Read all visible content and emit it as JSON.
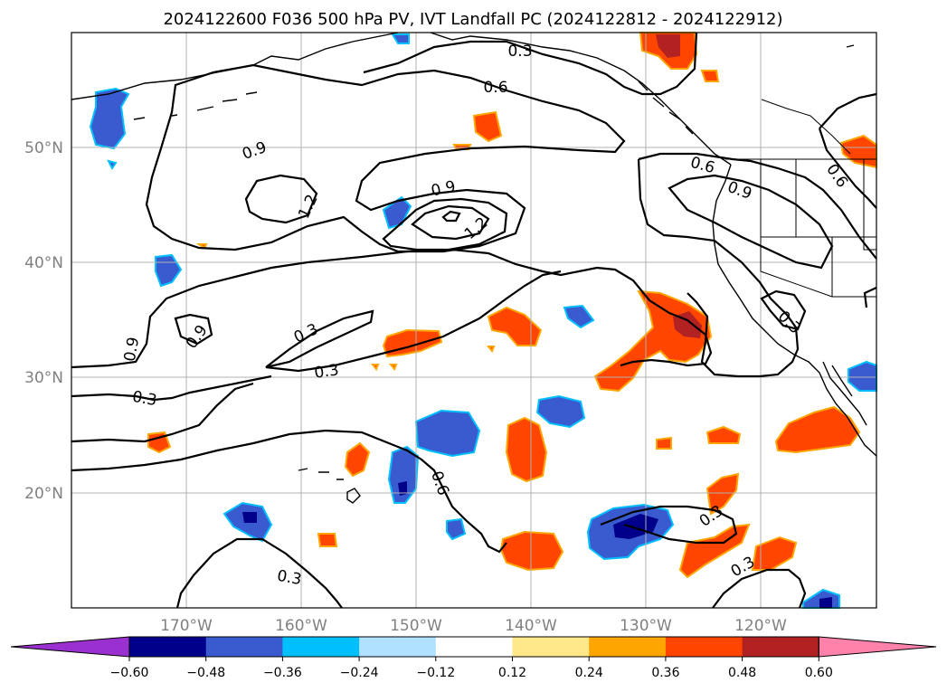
{
  "title": "2024122600 F036 500 hPa PV, IVT Landfall PC (2024122812 - 2024122912)",
  "lat_ticks": [
    "50°N",
    "40°N",
    "30°N",
    "20°N"
  ],
  "lon_ticks": [
    "170°W",
    "160°W",
    "150°W",
    "140°W",
    "130°W",
    "120°W"
  ],
  "contour_labels": [
    "0.3",
    "0.6",
    "0.9",
    "1.2",
    "0.9",
    "1.2",
    "0.9",
    "0.6",
    "0.9",
    "0.6",
    "0.3",
    "0.9",
    "0.3",
    "0.3",
    "0.3",
    "0.6",
    "0.3",
    "0.3",
    "0.3",
    "0.3",
    "0.3"
  ],
  "colorbar": {
    "ticks": [
      "−0.60",
      "−0.48",
      "−0.36",
      "−0.24",
      "−0.12",
      "0.12",
      "0.24",
      "0.36",
      "0.48",
      "0.60"
    ],
    "colors": [
      "#9b30d0",
      "#00008b",
      "#3a5bd0",
      "#00bfff",
      "#b0e2ff",
      "#ffffff",
      "#ffe88a",
      "#ffa500",
      "#ff4500",
      "#b22222",
      "#ff82ab"
    ]
  },
  "map": {
    "extent": {
      "lon_min": -180,
      "lon_max": -110,
      "lat_min": 10,
      "lat_max": 60
    },
    "contour_field": "500 hPa PV",
    "shading_field": "IVT Landfall PC",
    "neg_fill": "#3a5bd0",
    "pos_fill": "#ff4500"
  }
}
